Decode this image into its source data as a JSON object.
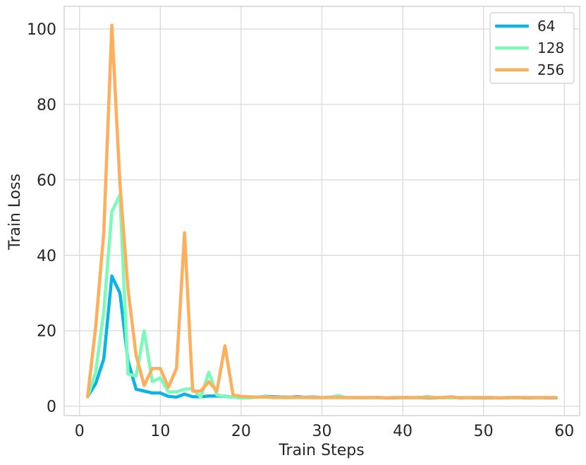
{
  "chart_data": {
    "type": "line",
    "title": "",
    "xlabel": "Train Steps",
    "ylabel": "Train Loss",
    "xlim": [
      -1.9,
      61.9
    ],
    "ylim": [
      -2.5,
      106
    ],
    "xticks": [
      0,
      10,
      20,
      30,
      40,
      50,
      60
    ],
    "yticks": [
      0,
      20,
      40,
      60,
      80,
      100
    ],
    "grid": true,
    "legend_position": "top-right",
    "x": [
      1,
      2,
      3,
      4,
      5,
      6,
      7,
      8,
      9,
      10,
      11,
      12,
      13,
      14,
      15,
      16,
      17,
      18,
      19,
      20,
      21,
      22,
      23,
      24,
      25,
      26,
      27,
      28,
      29,
      30,
      31,
      32,
      33,
      34,
      35,
      36,
      37,
      38,
      39,
      40,
      41,
      42,
      43,
      44,
      45,
      46,
      47,
      48,
      49,
      50,
      51,
      52,
      53,
      54,
      55,
      56,
      57,
      58,
      59
    ],
    "series": [
      {
        "name": "64",
        "color": "#0bb4e8",
        "values": [
          2.5,
          6,
          12.5,
          34.5,
          30,
          12,
          4.5,
          4,
          3.5,
          3.5,
          2.6,
          2.4,
          3.2,
          2.5,
          2.5,
          2.7,
          2.7,
          2.6,
          2.4,
          2.2,
          2.3,
          2.4,
          2.6,
          2.5,
          2.4,
          2.4,
          2.5,
          2.4,
          2.4,
          2.3,
          2.4,
          2.4,
          2.3,
          2.3,
          2.2,
          2.3,
          2.3,
          2.2,
          2.2,
          2.3,
          2.2,
          2.3,
          2.2,
          2.2,
          2.3,
          2.2,
          2.3,
          2.2,
          2.2,
          2.2,
          2.2,
          2.2,
          2.2,
          2.3,
          2.2,
          2.2,
          2.2,
          2.2,
          2.2
        ]
      },
      {
        "name": "128",
        "color": "#7dfab8",
        "values": [
          2.5,
          9,
          25,
          51.5,
          56,
          8.5,
          8,
          20,
          6.5,
          7.5,
          3.8,
          3.8,
          4.5,
          4.6,
          2.4,
          9,
          3,
          2.5,
          2.4,
          2.2,
          2.2,
          2.4,
          2.5,
          2.3,
          2.3,
          2.2,
          2.3,
          2.4,
          2.2,
          2.3,
          2.4,
          2.8,
          2.3,
          2.3,
          2.2,
          2.3,
          2.2,
          2.2,
          2.3,
          2.3,
          2.2,
          2.2,
          2.6,
          2.3,
          2.2,
          2.2,
          2.3,
          2.2,
          2.3,
          2.3,
          2.3,
          2.2,
          2.3,
          2.2,
          2.3,
          2.3,
          2.2,
          2.3,
          2.3
        ]
      },
      {
        "name": "256",
        "color": "#ffae5c",
        "values": [
          2.5,
          21,
          46,
          101,
          59,
          31,
          13.5,
          5.5,
          10,
          10,
          5,
          10,
          46,
          4,
          4,
          6.5,
          4,
          16,
          3,
          2.6,
          2.5,
          2.4,
          2.4,
          2.3,
          2.3,
          2.4,
          2.3,
          2.3,
          2.3,
          2.3,
          2.3,
          2.3,
          2.3,
          2.3,
          2.3,
          2.3,
          2.3,
          2.2,
          2.3,
          2.3,
          2.3,
          2.3,
          2.3,
          2.3,
          2.3,
          2.5,
          2.2,
          2.3,
          2.3,
          2.3,
          2.3,
          2.2,
          2.3,
          2.3,
          2.3,
          2.3,
          2.3,
          2.3,
          2.3
        ]
      }
    ]
  }
}
